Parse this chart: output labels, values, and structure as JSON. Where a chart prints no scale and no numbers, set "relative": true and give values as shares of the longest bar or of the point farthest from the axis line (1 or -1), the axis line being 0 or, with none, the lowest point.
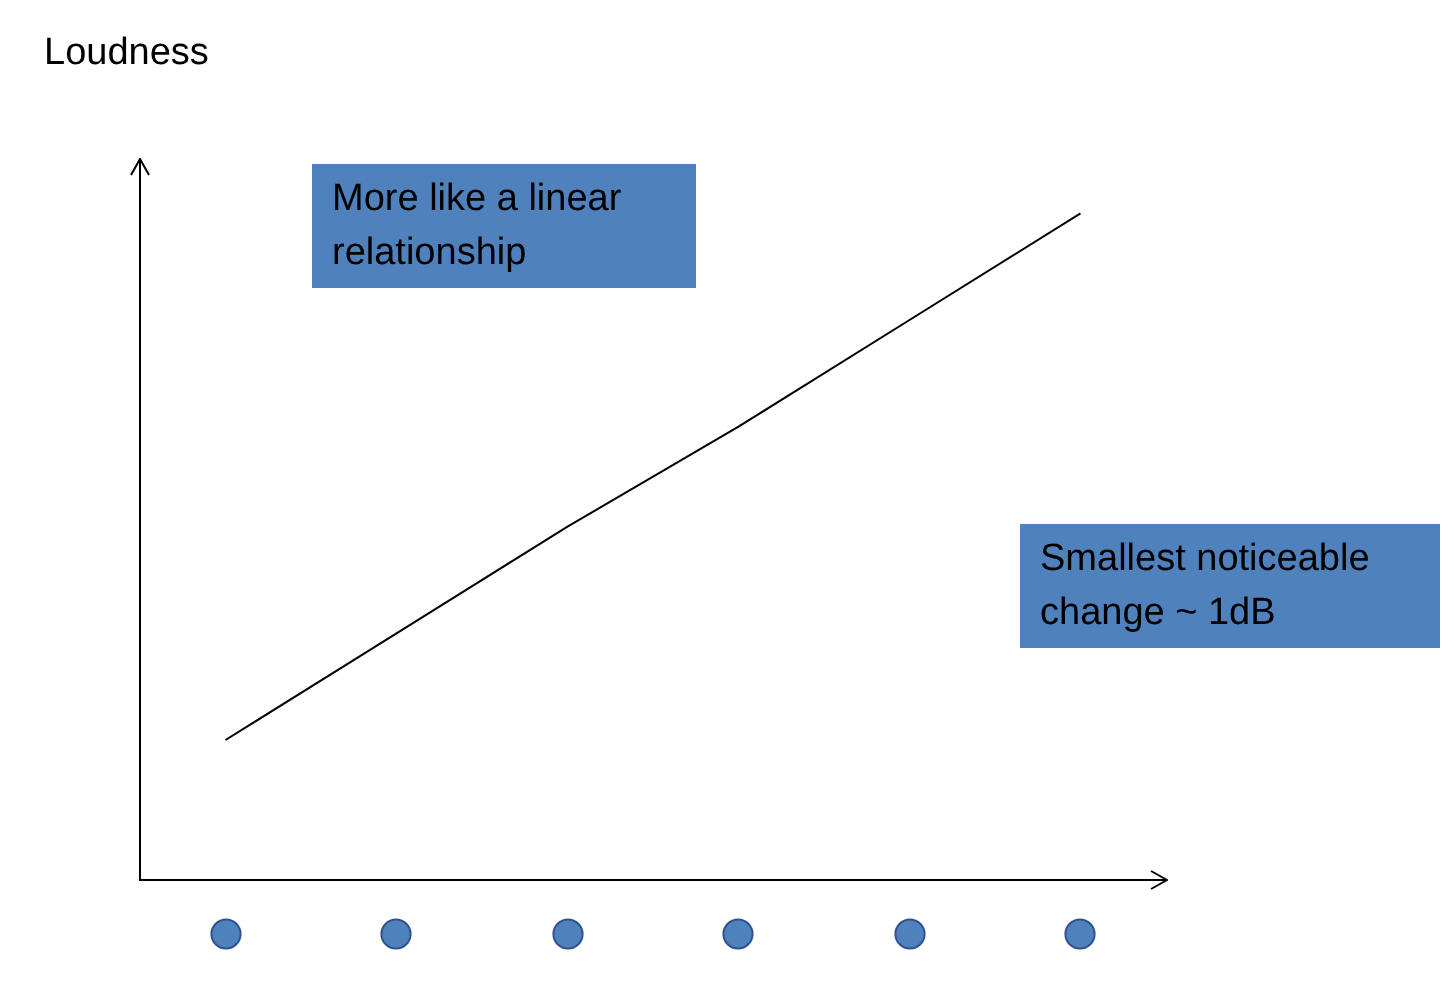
{
  "chart_data": {
    "type": "line",
    "relative": true,
    "ylabel": "Loudness",
    "categories": [
      null,
      null,
      null,
      null,
      null,
      null
    ],
    "series": [
      {
        "color": "#000000",
        "values": [
          0.21,
          0.37,
          0.53,
          0.68,
          0.84,
          1
        ]
      }
    ],
    "annotations": [
      "More like a linear relationship",
      "Smallest noticeable change ~ 1dB"
    ],
    "marker": "none",
    "line_style": "solid"
  }
}
